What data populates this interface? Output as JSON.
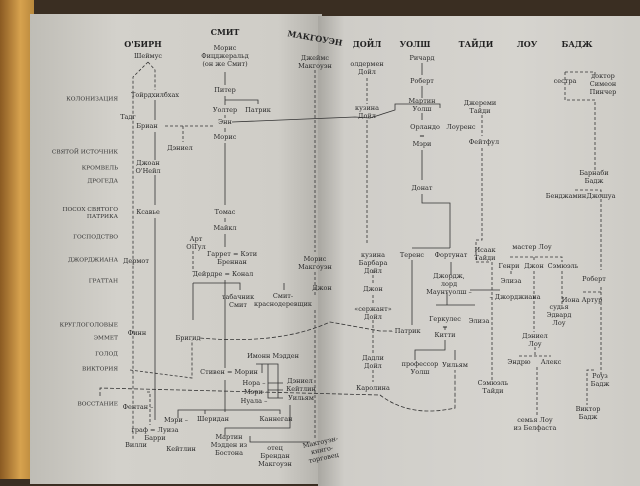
{
  "families": [
    "О'БИРН",
    "СМИТ",
    "МАКГОУЭН",
    "ДОЙЛ",
    "УОЛШ",
    "ТАЙДИ",
    "ЛОУ",
    "БАДЖ"
  ],
  "eras": [
    "КОЛОНИЗАЦИЯ",
    "СВЯТОЙ ИСТОЧНИК",
    "КРОМВЕЛЬ",
    "ДРОГЕДА",
    "ПОСОХ СВЯТОГО\nПАТРИКА",
    "ГОСПОДСТВО",
    "ДЖОРДЖИАНА",
    "ГРАТТАН",
    "КРУГЛОГОЛОВЫЕ",
    "ЭММЕТ",
    "ГОЛОД",
    "ВИКТОРИЯ",
    "ВОССТАНИЕ"
  ],
  "persons": [
    "Шеймус",
    "Тойрдхилбхах",
    "Тадг",
    "Бриан",
    "Дэниел",
    "Джоан\nО'Нейл",
    "Ксавье",
    "Арт\nО'Тул",
    "Дермот",
    "Финн",
    "Бригид",
    "Фентан –",
    "Вилли",
    "граф = Луиза\nБарри",
    "Кейтлин",
    "Мэри –",
    "Морис\nФицджеральд\n(он же Смит)",
    "Питер",
    "Уолтер",
    "Патрик",
    "Энн",
    "Морис",
    "Томас",
    "Майкл",
    "Гаррет = Кэти\nБреннан",
    "Дейрдре = Конал",
    "табачник\nСмит",
    "Смит-\nкраснодеревщик",
    "Имонн Мэдден",
    "Стивен = Морин",
    "Нора –",
    "Мэри –",
    "Нуала –",
    "Дэниел",
    "Кейтлин",
    "Уильям",
    "Шеридан",
    "Каннеган",
    "Мартин\nМэдден из\nБостона",
    "отец\nБрендан\nМакгоуэн",
    "Макгоуэн-\nкниго-\nторговец",
    "Джеймс\nМакгоуэн",
    "Морис\nМакгоуэн",
    "Джон",
    "олдермен\nДойл",
    "кузина\nДойл",
    "кузина\nБарбара\nДойл",
    "Джон",
    "«сержант»\nДойл",
    "Дадли\nДойл",
    "Каролина",
    "Ричард",
    "Роберт",
    "Мартин\nУолш",
    "Орландо",
    "Лоуренс",
    "=\nМэри",
    "Донат",
    "Теренс",
    "Фортунат",
    "Джордж,\nлорд\nМаунтуолш –",
    "Геркулес\n=\nКитти",
    "Элиза",
    "профессор\nУолш",
    "Уильям",
    "– Патрик",
    "Джереми\nТайди",
    "Фейтфул",
    "Исаак\nТайди",
    "Сэмюэль\nТайди",
    "– Джорджиана",
    "мастер Лоу",
    "Генри",
    "Джон",
    "Сэмюэль",
    "Элиза",
    "судья\nЭдвард\nЛоу",
    "Дэниел\nЛоу",
    "Эндрю",
    "Алекс",
    "семья Лоу\nиз Белфаста",
    "сестра",
    "доктор\nСимеон\nПинчер",
    "Барнаби\nБадж",
    "Бенджамин",
    "Джошуа",
    "Роберт",
    "Иона Артур",
    "Роуз\nБадж",
    "Виктор\nБадж"
  ],
  "colors": {
    "ink": "#2a2a2a",
    "page": "#d3d1cb",
    "cover": "#d7a24e"
  }
}
